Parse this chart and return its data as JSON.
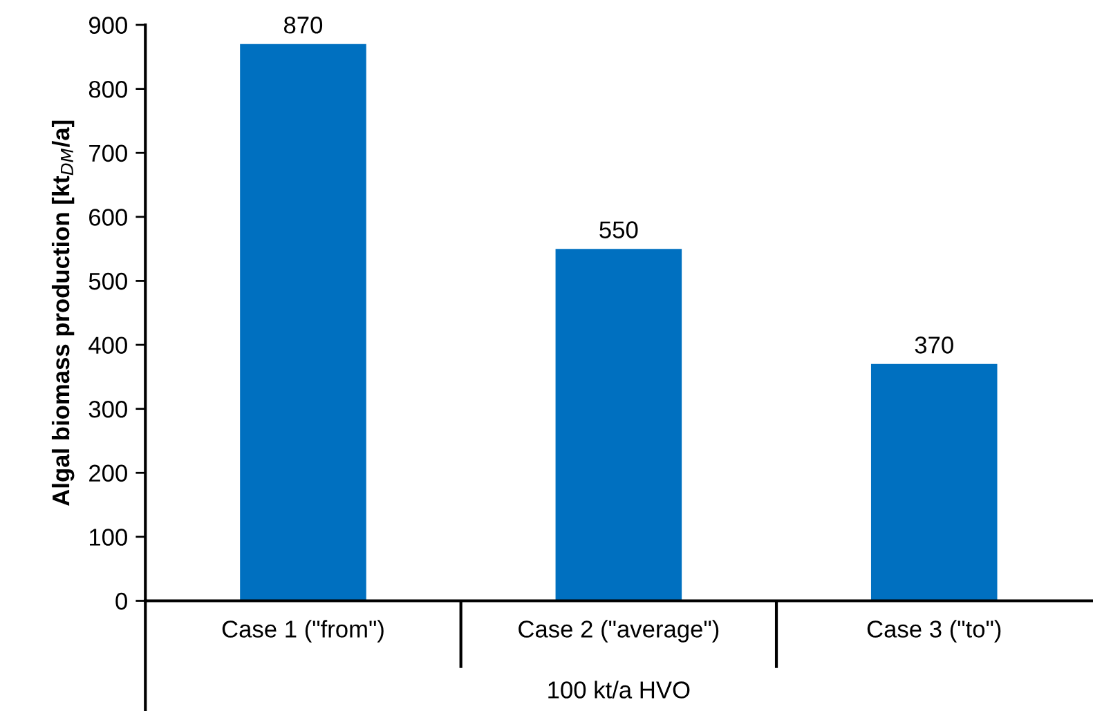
{
  "chart_data": {
    "type": "bar",
    "ylabel": "Algal biomass production [kt$_{DM}$/a]",
    "xlabel": "100 kt/a HVO",
    "categories": [
      "Case 1 (\"from\")",
      "Case 2 (\"average\")",
      "Case 3 (\"to\")"
    ],
    "values": [
      870,
      550,
      370
    ],
    "color": "#0070c0",
    "data_labels": true,
    "ylim": [
      0,
      900
    ],
    "yticks": [
      0,
      100,
      200,
      300,
      400,
      500,
      600,
      700,
      800,
      900
    ],
    "grid": false,
    "legend": false
  }
}
